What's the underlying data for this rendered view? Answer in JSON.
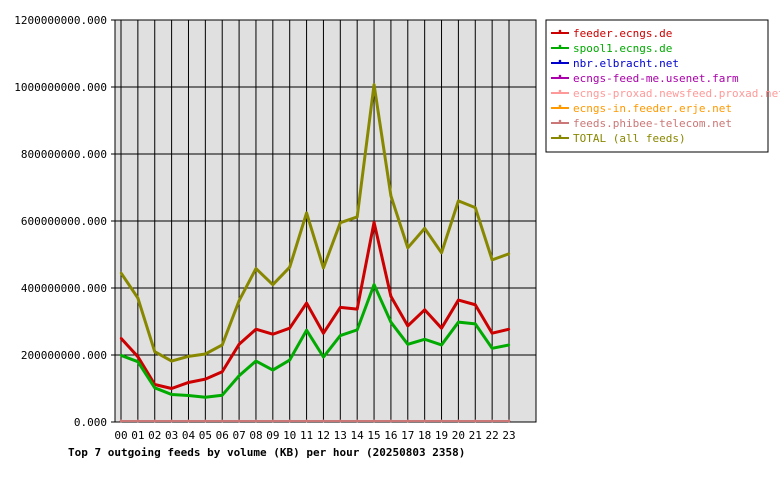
{
  "chart_data": {
    "type": "line",
    "title": "Top 7 outgoing feeds by volume (KB) per hour (20250803 2358)",
    "xlabel": "",
    "ylabel": "",
    "categories": [
      "00",
      "01",
      "02",
      "03",
      "04",
      "05",
      "06",
      "07",
      "08",
      "09",
      "10",
      "11",
      "12",
      "13",
      "14",
      "15",
      "16",
      "17",
      "18",
      "19",
      "20",
      "21",
      "22",
      "23"
    ],
    "ylim": [
      0,
      1200000000
    ],
    "yticks": [
      "0.000",
      "200000000.000",
      "400000000.000",
      "600000000.000",
      "800000000.000",
      "1000000000.000",
      "1200000000.000"
    ],
    "ytick_values": [
      0,
      200000000,
      400000000,
      600000000,
      800000000,
      1000000000,
      1200000000
    ],
    "grid": true,
    "legend_position": "top-right",
    "series": [
      {
        "name": "feeder.ecngs.de",
        "color": "#cc0000",
        "values": [
          250000000,
          195000000,
          112000000,
          100000000,
          118000000,
          128000000,
          150000000,
          232000000,
          277000000,
          262000000,
          280000000,
          355000000,
          265000000,
          342000000,
          337000000,
          596000000,
          375000000,
          287000000,
          335000000,
          280000000,
          364000000,
          350000000,
          265000000,
          277000000
        ]
      },
      {
        "name": "spool1.ecngs.de",
        "color": "#00aa00",
        "values": [
          199000000,
          180000000,
          102000000,
          82000000,
          79000000,
          74000000,
          80000000,
          138000000,
          182000000,
          155000000,
          185000000,
          274000000,
          194000000,
          258000000,
          275000000,
          410000000,
          298000000,
          232000000,
          247000000,
          230000000,
          298000000,
          293000000,
          220000000,
          230000000
        ]
      },
      {
        "name": "nbr.elbracht.net",
        "color": "#0000cc",
        "values": [
          3000000,
          3000000,
          3000000,
          3000000,
          3000000,
          3000000,
          3000000,
          3000000,
          3000000,
          3000000,
          3000000,
          3000000,
          3000000,
          3000000,
          3000000,
          3000000,
          3000000,
          3000000,
          3000000,
          3000000,
          3000000,
          3000000,
          3000000,
          3000000
        ]
      },
      {
        "name": "ecngs-feed-me.usenet.farm",
        "color": "#aa00aa",
        "values": [
          3000000,
          3000000,
          3000000,
          3000000,
          3000000,
          3000000,
          3000000,
          3000000,
          3000000,
          3000000,
          3000000,
          3000000,
          3000000,
          3000000,
          3000000,
          3000000,
          3000000,
          3000000,
          3000000,
          3000000,
          3000000,
          3000000,
          3000000,
          3000000
        ]
      },
      {
        "name": "ecngs-proxad.newsfeed.proxad.net",
        "color": "#ff9999",
        "values": [
          3000000,
          3000000,
          3000000,
          3000000,
          3000000,
          3000000,
          3000000,
          3000000,
          3000000,
          3000000,
          3000000,
          3000000,
          3000000,
          3000000,
          3000000,
          3000000,
          3000000,
          3000000,
          3000000,
          3000000,
          3000000,
          3000000,
          3000000,
          3000000
        ]
      },
      {
        "name": "ecngs-in.feeder.erje.net",
        "color": "#ff9900",
        "values": [
          3000000,
          3000000,
          3000000,
          3000000,
          3000000,
          3000000,
          3000000,
          3000000,
          3000000,
          3000000,
          3000000,
          3000000,
          3000000,
          3000000,
          3000000,
          3000000,
          3000000,
          3000000,
          3000000,
          3000000,
          3000000,
          3000000,
          3000000,
          3000000
        ]
      },
      {
        "name": "feeds.phibee-telecom.net",
        "color": "#cc7777",
        "values": [
          3000000,
          3000000,
          3000000,
          3000000,
          3000000,
          3000000,
          3000000,
          3000000,
          3000000,
          3000000,
          3000000,
          3000000,
          3000000,
          3000000,
          3000000,
          3000000,
          3000000,
          3000000,
          3000000,
          3000000,
          3000000,
          3000000,
          3000000,
          3000000
        ]
      },
      {
        "name": "TOTAL (all feeds)",
        "color": "#888800",
        "values": [
          445000000,
          370000000,
          210000000,
          182000000,
          196000000,
          203000000,
          230000000,
          362000000,
          458000000,
          410000000,
          462000000,
          624000000,
          460000000,
          595000000,
          612000000,
          1007000000,
          675000000,
          520000000,
          578000000,
          505000000,
          660000000,
          640000000,
          484000000,
          502000000
        ]
      }
    ]
  }
}
